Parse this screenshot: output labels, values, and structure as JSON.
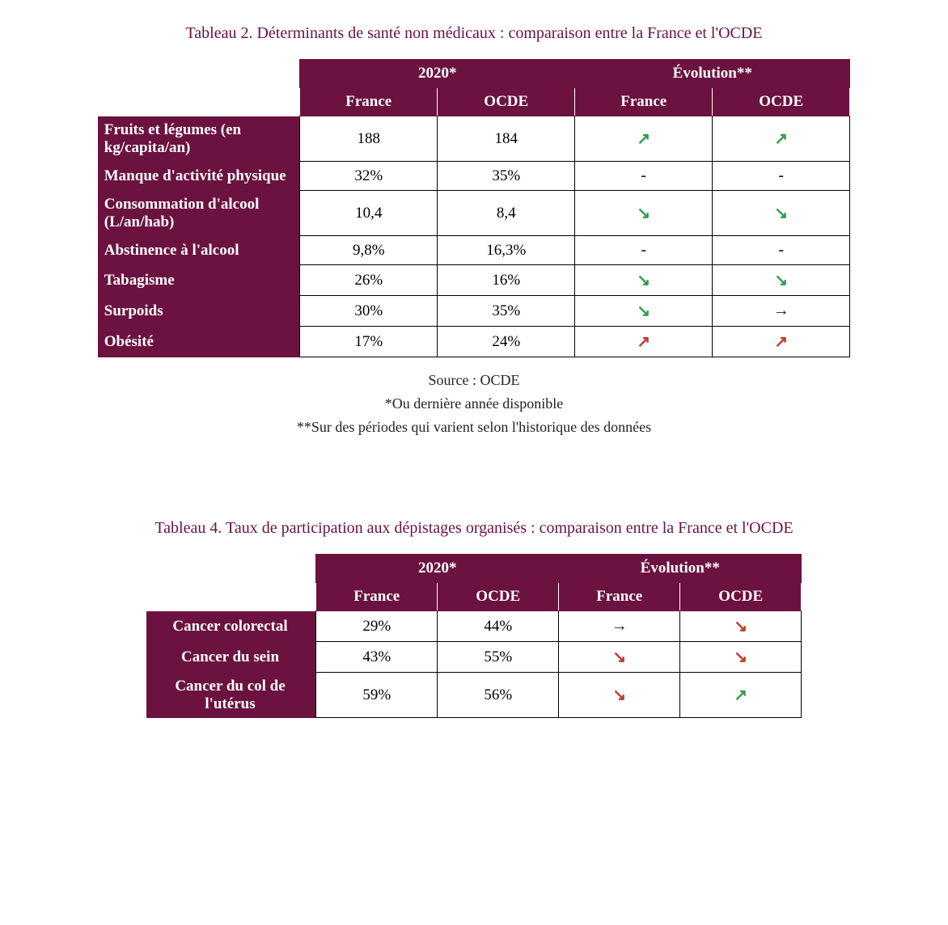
{
  "colors": {
    "brand": "#6b1240",
    "arrow_green": "#2e9e4a",
    "arrow_red": "#c0392b",
    "arrow_black": "#222222",
    "dash": "#222222"
  },
  "arrows": {
    "up": "↗",
    "down": "↘",
    "flat": "→",
    "dash": "-"
  },
  "table2": {
    "title": "Tableau 2. Déterminants de santé non médicaux : comparaison entre la France et l'OCDE",
    "col_widths": {
      "label": 250,
      "data": 170
    },
    "header_group_2020": "2020*",
    "header_group_evo": "Évolution**",
    "subheaders": [
      "France",
      "OCDE",
      "France",
      "OCDE"
    ],
    "rows": [
      {
        "label": "Fruits et légumes (en kg/capita/an)",
        "france2020": "188",
        "ocde2020": "184",
        "france_evo": "up_green",
        "ocde_evo": "up_green"
      },
      {
        "label": "Manque d'activité physique",
        "france2020": "32%",
        "ocde2020": "35%",
        "france_evo": "dash",
        "ocde_evo": "dash"
      },
      {
        "label": "Consommation d'alcool (L/an/hab)",
        "france2020": "10,4",
        "ocde2020": "8,4",
        "france_evo": "down_green",
        "ocde_evo": "down_green"
      },
      {
        "label": "Abstinence à l'alcool",
        "france2020": "9,8%",
        "ocde2020": "16,3%",
        "france_evo": "dash",
        "ocde_evo": "dash"
      },
      {
        "label": "Tabagisme",
        "france2020": "26%",
        "ocde2020": "16%",
        "france_evo": "down_green",
        "ocde_evo": "down_green"
      },
      {
        "label": "Surpoids",
        "france2020": "30%",
        "ocde2020": "35%",
        "france_evo": "down_green",
        "ocde_evo": "flat_black"
      },
      {
        "label": "Obésité",
        "france2020": "17%",
        "ocde2020": "24%",
        "france_evo": "up_red",
        "ocde_evo": "up_red"
      }
    ],
    "source_lines": [
      "Source : OCDE",
      "*Ou dernière année disponible",
      "**Sur des périodes qui varient selon l'historique des données"
    ]
  },
  "table4": {
    "title": "Tableau 4. Taux de participation aux dépistages organisés : comparaison entre la France et l'OCDE",
    "col_widths": {
      "label": 210,
      "data": 150
    },
    "header_group_2020": "2020*",
    "header_group_evo": "Évolution**",
    "subheaders": [
      "France",
      "OCDE",
      "France",
      "OCDE"
    ],
    "rows": [
      {
        "label": "Cancer colorectal",
        "france2020": "29%",
        "ocde2020": "44%",
        "france_evo": "flat_black",
        "ocde_evo": "down_red"
      },
      {
        "label": "Cancer du sein",
        "france2020": "43%",
        "ocde2020": "55%",
        "france_evo": "down_red",
        "ocde_evo": "down_red"
      },
      {
        "label": "Cancer du col de l'utérus",
        "france2020": "59%",
        "ocde2020": "56%",
        "france_evo": "down_red",
        "ocde_evo": "up_green"
      }
    ]
  }
}
